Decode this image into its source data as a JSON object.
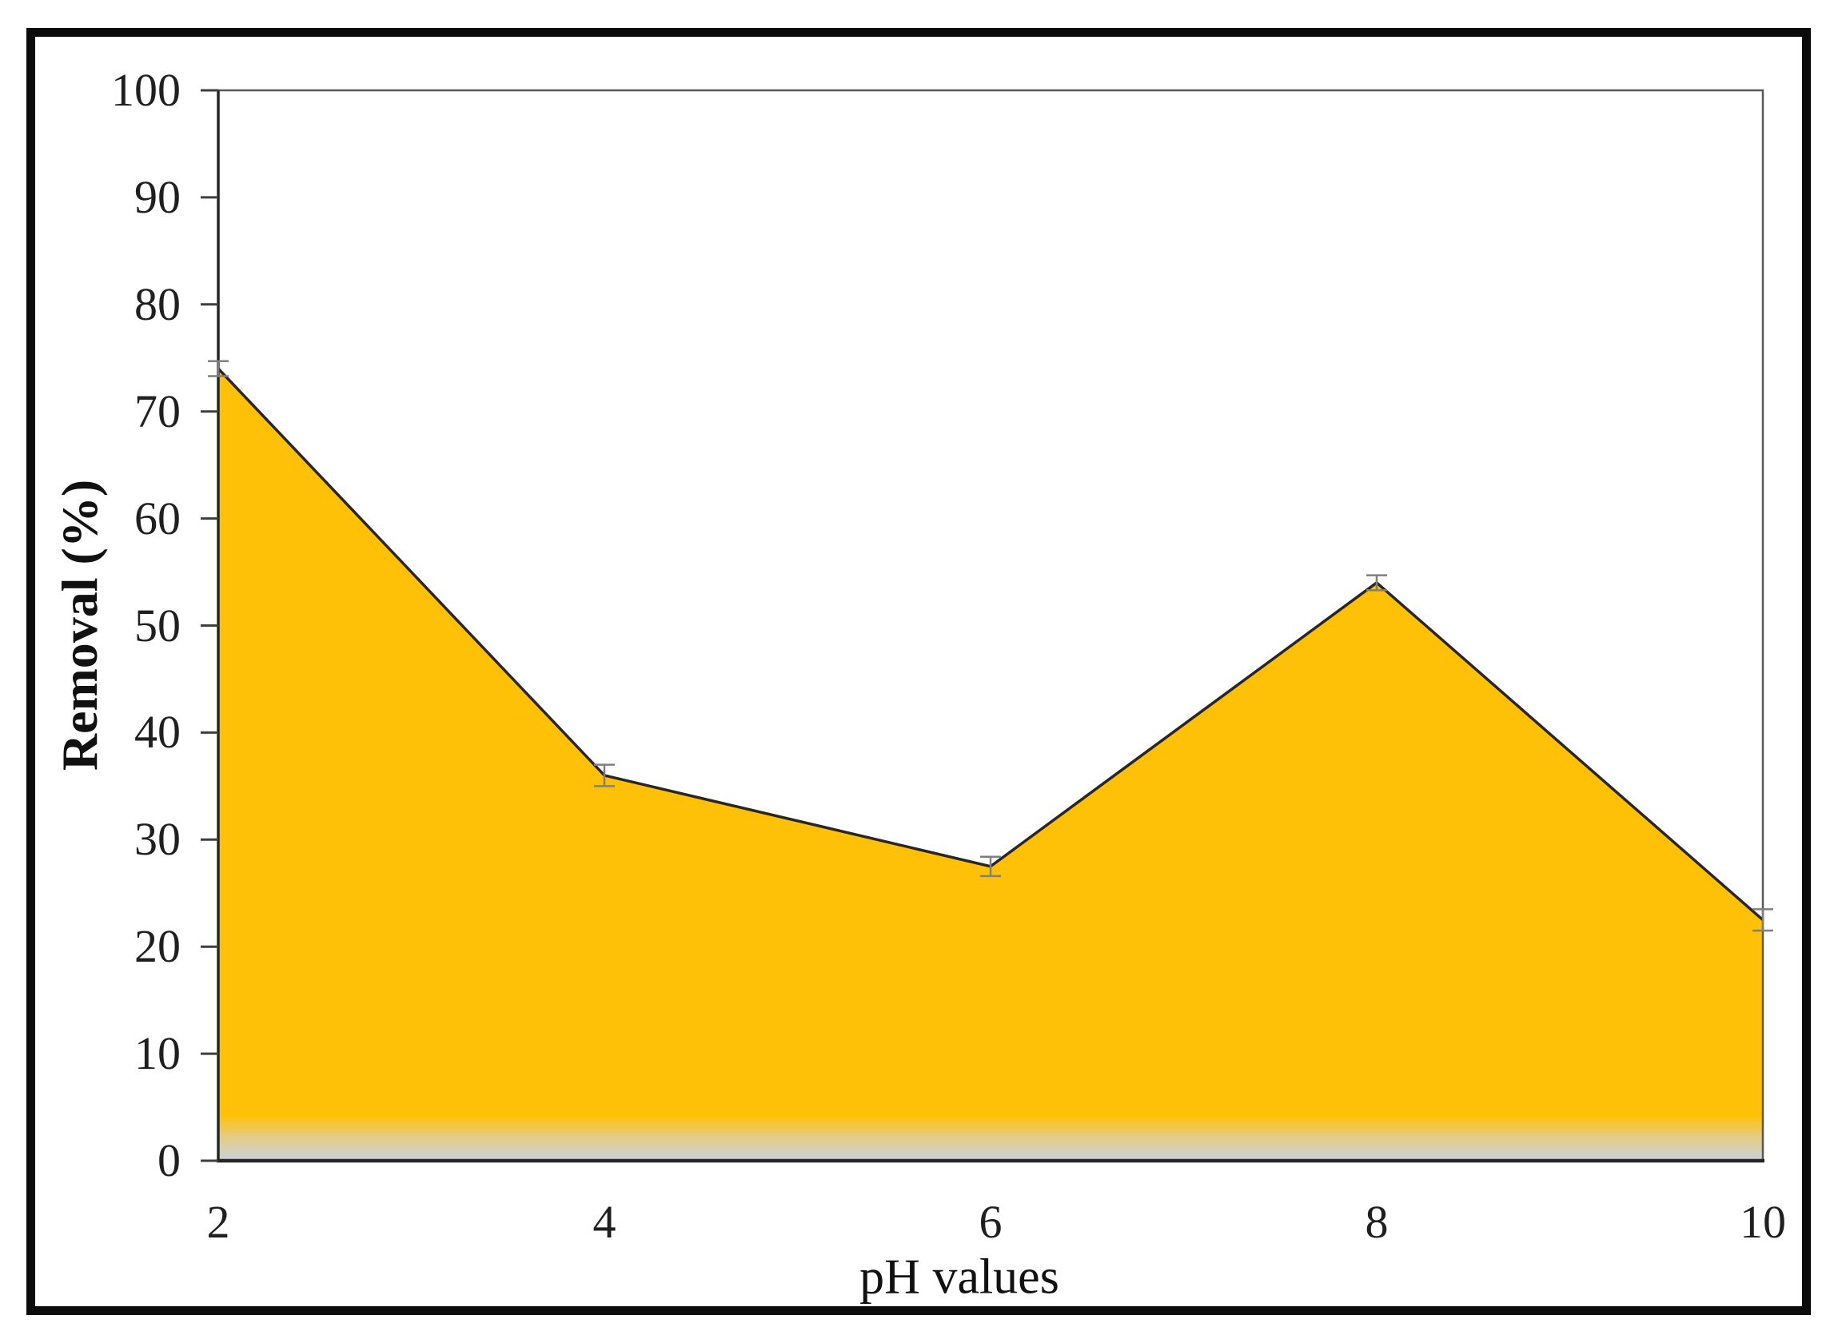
{
  "figure": {
    "y_axis_title": "Removal (%)",
    "x_axis_title": "pH values"
  },
  "chart_data": {
    "type": "area",
    "title": "",
    "xlabel": "pH values",
    "ylabel": "Removal (%)",
    "x": [
      2,
      4,
      6,
      8,
      10
    ],
    "series": [
      {
        "name": "Removal (%)",
        "values": [
          74,
          36,
          27.5,
          54,
          22.5
        ]
      }
    ],
    "error_bars": [
      0.7,
      1.0,
      0.9,
      0.7,
      1.0
    ],
    "xlim": [
      2,
      10
    ],
    "ylim": [
      0,
      100
    ],
    "x_ticks": [
      2,
      4,
      6,
      8,
      10
    ],
    "y_ticks": [
      0,
      10,
      20,
      30,
      40,
      50,
      60,
      70,
      80,
      90,
      100
    ],
    "grid": false,
    "legend": false,
    "colors": {
      "area_fill": "#FFC107",
      "area_fade_mid": "#E4CC86",
      "area_fade_bottom": "#C8D2DD",
      "data_line": "#262626",
      "plot_border": "#595959",
      "axis_dark": "#262626",
      "tick_mark": "#3f3f3f",
      "error_bar": "#7f7f7f",
      "text": "#1f1f1f",
      "frame": "#0b0b0b"
    }
  }
}
